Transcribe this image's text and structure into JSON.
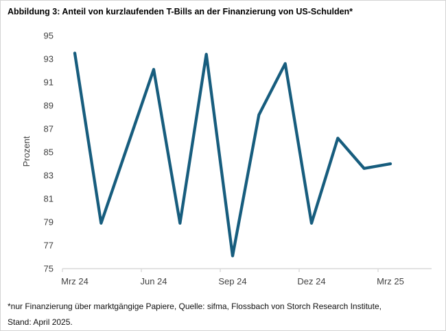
{
  "figure": {
    "title": "Abbildung 3: Anteil von kurzlaufenden T-Bills an der Finanzierung von US-Schulden*",
    "footnote_line1": "*nur Finanzierung über marktgängige Papiere, Quelle: sifma, Flossbach von Storch Research Institute,",
    "footnote_line2": "Stand: April 2025."
  },
  "chart_data": {
    "type": "line",
    "title": "Abbildung 3: Anteil von kurzlaufenden T-Bills an der Finanzierung von US-Schulden*",
    "xlabel": "",
    "ylabel": "Prozent",
    "categories": [
      "Mrz 24",
      "Apr 24",
      "Mai 24",
      "Jun 24",
      "Jul 24",
      "Aug 24",
      "Sep 24",
      "Okt 24",
      "Nov 24",
      "Dez 24",
      "Jan 25",
      "Feb 25",
      "Mrz 25"
    ],
    "values": [
      93.5,
      78.9,
      85.5,
      92.1,
      78.9,
      93.4,
      76.1,
      88.2,
      92.6,
      78.9,
      86.2,
      83.6,
      84.0
    ],
    "x_tick_labels": [
      "Mrz 24",
      "Jun 24",
      "Sep 24",
      "Dez 24",
      "Mrz 25"
    ],
    "yticks": [
      75,
      77,
      79,
      81,
      83,
      85,
      87,
      89,
      91,
      93,
      95
    ],
    "ylim": [
      75,
      95
    ],
    "grid": "off",
    "legend": "none",
    "line_color": "#175d7e",
    "axis_color": "#d9d9d9",
    "tick_label_color": "#404040"
  }
}
